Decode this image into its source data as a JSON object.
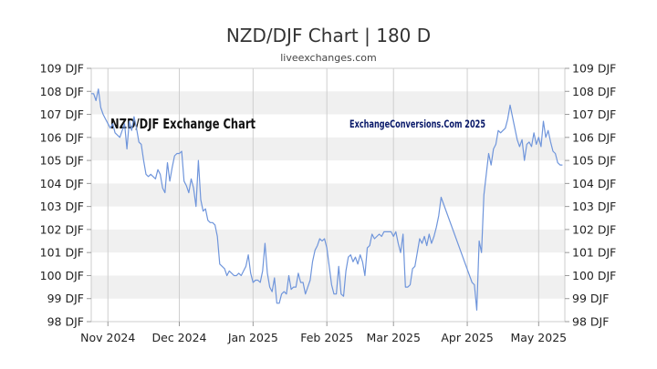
{
  "chart_data": {
    "type": "line",
    "title": "NZD/DJF Chart | 180 D",
    "subtitle": "liveexchanges.com",
    "watermarks": [
      "NZD/DJF Exchange Chart",
      "ExchangeConversions.Com 2025"
    ],
    "line_color": "#6f95db",
    "ylim": [
      98,
      109
    ],
    "y_ticks": [
      {
        "value": 109,
        "label": "109 DJF"
      },
      {
        "value": 108,
        "label": "108 DJF"
      },
      {
        "value": 107,
        "label": "107 DJF"
      },
      {
        "value": 106,
        "label": "106 DJF"
      },
      {
        "value": 105,
        "label": "105 DJF"
      },
      {
        "value": 104,
        "label": "104 DJF"
      },
      {
        "value": 103,
        "label": "103 DJF"
      },
      {
        "value": 102,
        "label": "102 DJF"
      },
      {
        "value": 101,
        "label": "101 DJF"
      },
      {
        "value": 100,
        "label": "100 DJF"
      },
      {
        "value": 99,
        "label": "99 DJF"
      },
      {
        "value": 98,
        "label": "98 DJF"
      }
    ],
    "x_ticks": [
      {
        "date": "2024-11-01",
        "label": "Nov 2024"
      },
      {
        "date": "2024-12-01",
        "label": "Dec 2024"
      },
      {
        "date": "2025-01-01",
        "label": "Jan 2025"
      },
      {
        "date": "2025-02-01",
        "label": "Feb 2025"
      },
      {
        "date": "2025-03-01",
        "label": "Mar 2025"
      },
      {
        "date": "2025-04-01",
        "label": "Apr 2025"
      },
      {
        "date": "2025-05-01",
        "label": "May 2025"
      }
    ],
    "xlim": [
      "2024-10-25",
      "2025-05-12"
    ],
    "grid": true,
    "series": [
      {
        "x": [
          "2024-10-25",
          "2024-10-26",
          "2024-10-27",
          "2024-10-28",
          "2024-10-29",
          "2024-10-30",
          "2024-10-31",
          "2024-11-01",
          "2024-11-02",
          "2024-11-03",
          "2024-11-04",
          "2024-11-05",
          "2024-11-06",
          "2024-11-07",
          "2024-11-08",
          "2024-11-09",
          "2024-11-10",
          "2024-11-11",
          "2024-11-12",
          "2024-11-13",
          "2024-11-14",
          "2024-11-15",
          "2024-11-16",
          "2024-11-17",
          "2024-11-18",
          "2024-11-19",
          "2024-11-20",
          "2024-11-21",
          "2024-11-22",
          "2024-11-23",
          "2024-11-24",
          "2024-11-25",
          "2024-11-26",
          "2024-11-27",
          "2024-11-28",
          "2024-11-29",
          "2024-11-30",
          "2024-12-01",
          "2024-12-02",
          "2024-12-03",
          "2024-12-04",
          "2024-12-05",
          "2024-12-06",
          "2024-12-07",
          "2024-12-08",
          "2024-12-09",
          "2024-12-10",
          "2024-12-11",
          "2024-12-12",
          "2024-12-13",
          "2024-12-14",
          "2024-12-15",
          "2024-12-16",
          "2024-12-17",
          "2024-12-18",
          "2024-12-19",
          "2024-12-20",
          "2024-12-21",
          "2024-12-22",
          "2024-12-23",
          "2024-12-24",
          "2024-12-25",
          "2024-12-26",
          "2024-12-27",
          "2024-12-28",
          "2024-12-29",
          "2024-12-30",
          "2024-12-31",
          "2025-01-01",
          "2025-01-02",
          "2025-01-03",
          "2025-01-04",
          "2025-01-05",
          "2025-01-06",
          "2025-01-07",
          "2025-01-08",
          "2025-01-09",
          "2025-01-10",
          "2025-01-11",
          "2025-01-12",
          "2025-01-13",
          "2025-01-14",
          "2025-01-15",
          "2025-01-16",
          "2025-01-17",
          "2025-01-18",
          "2025-01-19",
          "2025-01-20",
          "2025-01-21",
          "2025-01-22",
          "2025-01-23",
          "2025-01-24",
          "2025-01-25",
          "2025-01-26",
          "2025-01-27",
          "2025-01-28",
          "2025-01-29",
          "2025-01-30",
          "2025-01-31",
          "2025-02-01",
          "2025-02-02",
          "2025-02-03",
          "2025-02-04",
          "2025-02-05",
          "2025-02-06",
          "2025-02-07",
          "2025-02-08",
          "2025-02-09",
          "2025-02-10",
          "2025-02-11",
          "2025-02-12",
          "2025-02-13",
          "2025-02-14",
          "2025-02-15",
          "2025-02-16",
          "2025-02-17",
          "2025-02-18",
          "2025-02-19",
          "2025-02-20",
          "2025-02-21",
          "2025-02-22",
          "2025-02-23",
          "2025-02-24",
          "2025-02-25",
          "2025-02-26",
          "2025-02-27",
          "2025-02-28",
          "2025-03-01",
          "2025-03-02",
          "2025-03-03",
          "2025-03-04",
          "2025-03-05",
          "2025-03-06",
          "2025-03-07",
          "2025-03-08",
          "2025-03-09",
          "2025-03-10",
          "2025-03-11",
          "2025-03-12",
          "2025-03-13",
          "2025-03-14",
          "2025-03-15",
          "2025-03-16",
          "2025-03-17",
          "2025-03-18",
          "2025-03-19",
          "2025-03-20",
          "2025-03-21",
          "2025-04-03",
          "2025-04-04",
          "2025-04-05",
          "2025-04-06",
          "2025-04-07",
          "2025-04-08",
          "2025-04-09",
          "2025-04-10",
          "2025-04-11",
          "2025-04-12",
          "2025-04-13",
          "2025-04-14",
          "2025-04-15",
          "2025-04-16",
          "2025-04-17",
          "2025-04-18",
          "2025-04-19",
          "2025-04-20",
          "2025-04-21",
          "2025-04-22",
          "2025-04-23",
          "2025-04-24",
          "2025-04-25",
          "2025-04-26",
          "2025-04-27",
          "2025-04-28",
          "2025-04-29",
          "2025-04-30",
          "2025-05-01",
          "2025-05-02",
          "2025-05-03",
          "2025-05-04",
          "2025-05-05",
          "2025-05-06",
          "2025-05-07",
          "2025-05-08",
          "2025-05-09",
          "2025-05-10",
          "2025-05-11"
        ],
        "y": [
          107.9,
          107.9,
          107.6,
          108.1,
          107.3,
          107.0,
          106.8,
          106.6,
          106.4,
          106.6,
          106.2,
          106.1,
          106.0,
          106.3,
          106.6,
          105.5,
          106.7,
          106.3,
          106.9,
          106.4,
          105.8,
          105.7,
          105.0,
          104.4,
          104.3,
          104.4,
          104.3,
          104.2,
          104.6,
          104.4,
          103.8,
          103.6,
          104.9,
          104.1,
          104.7,
          105.2,
          105.3,
          105.3,
          105.4,
          104.1,
          103.9,
          103.6,
          104.2,
          103.8,
          103.0,
          105.0,
          103.3,
          102.8,
          102.9,
          102.4,
          102.3,
          102.3,
          102.2,
          101.7,
          100.5,
          100.4,
          100.3,
          100.0,
          100.2,
          100.1,
          100.0,
          100.0,
          100.1,
          100.0,
          100.2,
          100.4,
          100.9,
          100.1,
          99.7,
          99.8,
          99.8,
          99.7,
          100.2,
          101.4,
          100.1,
          99.5,
          99.3,
          99.9,
          98.8,
          98.8,
          99.2,
          99.3,
          99.2,
          100.0,
          99.4,
          99.5,
          99.5,
          100.1,
          99.7,
          99.7,
          99.2,
          99.5,
          99.8,
          100.6,
          101.1,
          101.3,
          101.6,
          101.5,
          101.6,
          101.2,
          100.4,
          99.6,
          99.2,
          99.2,
          100.4,
          99.2,
          99.1,
          100.2,
          100.8,
          100.9,
          100.6,
          100.8,
          100.5,
          100.9,
          100.6,
          100.0,
          101.2,
          101.3,
          101.8,
          101.6,
          101.7,
          101.8,
          101.7,
          101.9,
          101.9,
          101.9,
          101.9,
          101.7,
          101.9,
          101.4,
          101.0,
          101.8,
          99.5,
          99.5,
          99.6,
          100.3,
          100.4,
          101.0,
          101.6,
          101.4,
          101.7,
          101.3,
          101.8,
          101.4,
          101.7,
          102.1,
          102.6,
          103.4,
          99.7,
          99.6,
          98.5,
          101.5,
          101.0,
          103.5,
          104.4,
          105.3,
          104.8,
          105.5,
          105.7,
          106.3,
          106.2,
          106.3,
          106.4,
          106.8,
          107.4,
          106.9,
          106.4,
          105.9,
          105.6,
          105.9,
          105.0,
          105.7,
          105.8,
          105.6,
          106.2,
          105.7,
          106.0,
          105.6,
          106.7,
          106.0,
          106.3,
          105.8,
          105.4,
          105.3,
          104.9,
          104.8,
          104.8
        ]
      }
    ]
  }
}
